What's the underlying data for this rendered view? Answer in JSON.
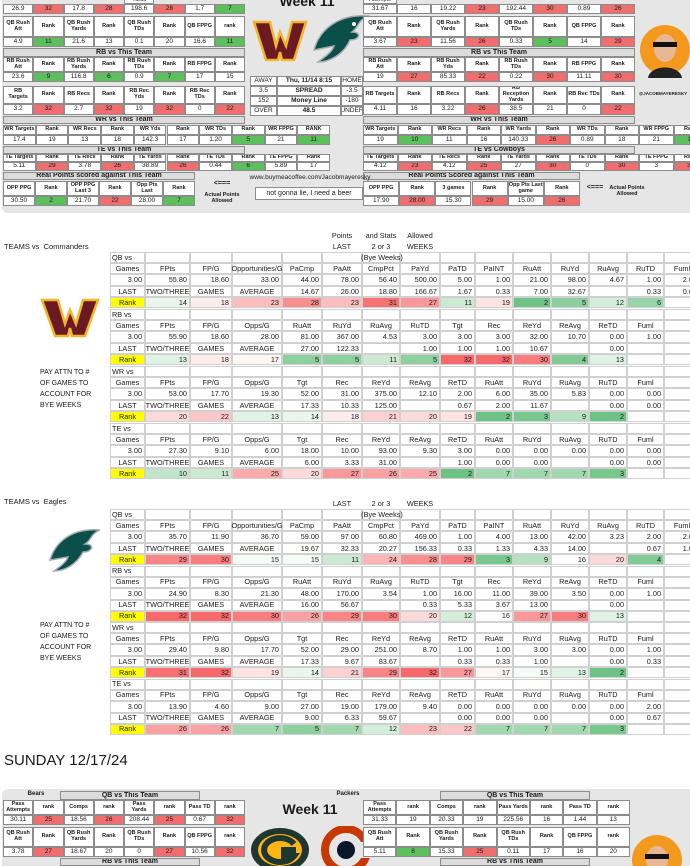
{
  "graphic_1": {
    "title": "Week 11",
    "left": [
      {
        "label": "Yards",
        "values": [
          "26.9",
          "32",
          "17.8",
          "28",
          "198.6",
          "28",
          "1.7",
          "7"
        ]
      },
      {
        "header": [
          "QB Rush Att",
          "Rank",
          "QB Rush Yards",
          "Rank",
          "QB Rush TDs",
          "Rank",
          "QB FPPG",
          "rank"
        ],
        "values": [
          "4.9",
          "11",
          "21.6",
          "13",
          "0.1",
          "20",
          "16.6",
          "11"
        ]
      },
      {
        "title": "RB vs This Team",
        "header": [
          "RB Rush Att",
          "Rank",
          "RB Rush Yards",
          "Rank",
          "RB Rush TDs",
          "Rank",
          "RB FPPG",
          "Rank"
        ],
        "values": [
          "23.6",
          "9",
          "116.8",
          "6",
          "0.9",
          "7",
          "17",
          "15"
        ]
      },
      {
        "header": [
          "RB Targets",
          "Rank",
          "RB Recs",
          "Rank",
          "RB Rec Yds",
          "Rank",
          "RB Rec TDs",
          "Rank"
        ],
        "values": [
          "3.2",
          "32",
          "2.7",
          "32",
          "19",
          "32",
          "0",
          "22"
        ]
      },
      {
        "title": "WR vs This Team",
        "header": [
          "WR Targets",
          "Rank",
          "WR Recs",
          "Rank",
          "WR Yds",
          "Rank",
          "WR TDs",
          "Rank",
          "WR FPPG",
          "RANK"
        ],
        "values": [
          "17.4",
          "19",
          "13",
          "18",
          "142.3",
          "17",
          "1.20",
          "5",
          "21",
          "11"
        ]
      },
      {
        "title": "TE vs This Team",
        "header": [
          "TE Targets",
          "Rank",
          "TE Recs",
          "Rank",
          "TE Yards",
          "Rank",
          "TE TDs",
          "Rank",
          "TE FPPG",
          "Rank"
        ],
        "values": [
          "5.11",
          "29",
          "3.78",
          "26",
          "38.89",
          "26",
          "0.44",
          "6",
          "5.89",
          "17"
        ]
      },
      {
        "title": "Real Points scored against This Team",
        "header": [
          "OPP PPG",
          "Rank",
          "OPP PPG Last 3",
          "Rank",
          "Opp Pts Last",
          "Rank"
        ],
        "values": [
          "30.50",
          "2",
          "21.70",
          "22",
          "28.00",
          "7"
        ]
      }
    ],
    "right": [
      {
        "label": "Attempts",
        "values": [
          "31.67",
          "16",
          "19.22",
          "23",
          "192.44",
          "30",
          "0.89",
          "26"
        ]
      },
      {
        "header": [
          "QB Rush Att",
          "Rank",
          "QB Rush Yards",
          "Rank",
          "QB Rush TDs",
          "Rank",
          "QB FPPG",
          "Rank"
        ],
        "values": [
          "3.67",
          "23",
          "11.56",
          "26",
          "0.33",
          "5",
          "14",
          "29"
        ]
      },
      {
        "title": "RB vs This Team",
        "header": [
          "RB Rush Att",
          "Rank",
          "RB Rush Yds",
          "Rank",
          "RB Rush TDs",
          "Rank",
          "RB FPPG",
          "Rank"
        ],
        "values": [
          "19",
          "27",
          "85.33",
          "22",
          "0.22",
          "30",
          "11.11",
          "30"
        ]
      },
      {
        "header": [
          "RB Targets",
          "Rank",
          "RB Recs",
          "Rank",
          "RB Reception Yards",
          "Rank",
          "RB Rec TDs",
          "Rank"
        ],
        "values": [
          "4.11",
          "16",
          "3.22",
          "26",
          "38.5",
          "21",
          "0",
          "22"
        ]
      },
      {
        "title": "WR vs This Team",
        "header": [
          "WR Targets",
          "Rank",
          "WR Recs",
          "Rank",
          "WR Yards",
          "Rank",
          "WR TDs",
          "Rank",
          "WR FPPG",
          "Rank"
        ],
        "values": [
          "19",
          "10",
          "11",
          "16",
          "140.33",
          "26",
          "0.89",
          "18",
          "21",
          "11"
        ]
      },
      {
        "title": "TE vs Cowboys",
        "header": [
          "TE Targets",
          "Rank",
          "TE Recs",
          "Rank",
          "TE Yards",
          "Rank",
          "TE TDs",
          "Rank",
          "TE FPPG",
          "Rank"
        ],
        "values": [
          "4.12",
          "23",
          "4.12",
          "25",
          "27",
          "30",
          "0",
          "30",
          "3",
          "31"
        ]
      },
      {
        "title": "Real Points Scored against This Team",
        "header": [
          "OPP PPG",
          "Rank",
          "3 games",
          "Rank",
          "Opp Pts Last game",
          "Rank"
        ],
        "values": [
          "17.90",
          "28.00",
          "15.30",
          "29",
          "15.00",
          "26"
        ]
      }
    ],
    "game": [
      [
        "AWAY",
        "Thu, 11/14 8:15",
        "HOME"
      ],
      [
        "3.5",
        "SPREAD",
        "-3.5"
      ],
      [
        "152",
        "Money Line",
        "-180"
      ],
      [
        "OVER",
        "48.5",
        "UNDER"
      ]
    ],
    "link": "www.buymeacoffee.com/Jacobmayeresky",
    "tagline": "not gonna lie, I need a beer",
    "left_arrow": "<===",
    "left_arrow_note": "Actual Points Allowed",
    "right_arrow": "<===",
    "right_arrow_note": "Actual Points Allowed",
    "handle": "@JACOBMAYERESKY"
  },
  "commanders_table": {
    "title": "TEAMS vs  Commanders",
    "header_notes": [
      [
        "Points",
        "and Stats",
        "Allowed"
      ],
      [
        "LAST",
        "2 or 3",
        "WEEKS"
      ]
    ],
    "bye_note": "(Bye Weeks)",
    "note": [
      "PAY ATTN TO #",
      "OF GAMES TO",
      "ACCOUNT FOR",
      "BYE WEEKS"
    ],
    "sections": [
      {
        "label": "QB vs",
        "rows": [
          [
            "Games",
            "FPts",
            "FP/G",
            "Opportunities/G",
            "PaCmp",
            "PaAtt",
            "CmpPct",
            "PaYd",
            "PaTD",
            "PaINT",
            "RuAtt",
            "RuYd",
            "RuAvg",
            "RuTD",
            "Fuml"
          ],
          [
            "3.00",
            "55.80",
            "18.60",
            "33.00",
            "44.00",
            "78.00",
            "56.40",
            "500.00",
            "5.00",
            "1.00",
            "21.00",
            "98.00",
            "4.67",
            "1.00",
            "2.00"
          ],
          [
            "LAST",
            "TWO/THREE",
            "GAMES",
            "AVERAGE",
            "14.67",
            "26.00",
            "18.80",
            "166.67",
            "1.67",
            "0.33",
            "7.00",
            "32.67",
            null,
            "0.33",
            "0.67"
          ],
          [
            "Rank",
            "14",
            "18",
            "23",
            "28",
            "23",
            "31",
            "27",
            "11",
            "19",
            "2",
            "5",
            "12",
            "6",
            null
          ]
        ]
      },
      {
        "label": "RB vs",
        "rows": [
          [
            "Games",
            "FPts",
            "FP/G",
            "Opps/G",
            "RuAtt",
            "RuYd",
            "RuAvg",
            "RuTD",
            "Tgt",
            "Rec",
            "ReYd",
            "ReAvg",
            "ReTD",
            "Fuml",
            null
          ],
          [
            "3.00",
            "55.90",
            "18.60",
            "28.00",
            "81.00",
            "367.00",
            "4.53",
            "3.00",
            "3.00",
            "3.00",
            "32.00",
            "10.70",
            "0.00",
            "1.00",
            null
          ],
          [
            "LAST",
            "TWO/THREE",
            "GAMES",
            "AVERAGE",
            "27.00",
            "122.33",
            null,
            "1.00",
            "1.00",
            "1.00",
            "10.67",
            null,
            "0.00",
            null,
            null
          ],
          [
            "Rank",
            "13",
            "18",
            "17",
            "5",
            "5",
            "11",
            "5",
            "32",
            "32",
            "30",
            "4",
            "13",
            null,
            null
          ]
        ]
      },
      {
        "label": "WR vs",
        "rows": [
          [
            "Games",
            "FPts",
            "FP/G",
            "Opps/G",
            "Tgt",
            "Rec",
            "ReYd",
            "ReAvg",
            "ReTD",
            "RuAtt",
            "RuYd",
            "RuAvg",
            "RuTD",
            "Fuml",
            null
          ],
          [
            "3.00",
            "53.00",
            "17.70",
            "19.30",
            "52.00",
            "31.00",
            "375.00",
            "12.10",
            "2.00",
            "6.00",
            "35.00",
            "5.83",
            "0.00",
            "0.00",
            null
          ],
          [
            "LAST",
            "TWO/THREE",
            "GAMES",
            "AVERAGE",
            "17.33",
            "10.33",
            "125.00",
            null,
            "0.67",
            "2.00",
            "11.67",
            null,
            "0.00",
            "0.00",
            null
          ],
          [
            "Rank",
            "20",
            "22",
            "13",
            "14",
            "18",
            "21",
            "20",
            "19",
            "2",
            "3",
            "9",
            "2",
            null,
            null
          ]
        ]
      },
      {
        "label": "TE vs",
        "rows": [
          [
            "Games",
            "FPts",
            "FP/G",
            "Opps/G",
            "Tgt",
            "Rec",
            "ReYd",
            "ReAvg",
            "ReTD",
            "RuAtt",
            "RuYd",
            "RuAvg",
            "RuTD",
            "Fuml",
            null
          ],
          [
            "3.00",
            "27.30",
            "9.10",
            "6.00",
            "18.00",
            "10.00",
            "93.00",
            "9.30",
            "3.00",
            "0.00",
            "0.00",
            "0.00",
            "0.00",
            "0.00",
            null
          ],
          [
            "LAST",
            "TWO/THREE",
            "GAMES",
            "AVERAGE",
            "6.00",
            "3.33",
            "31.00",
            null,
            "1.00",
            "0.00",
            "0.00",
            null,
            "0.00",
            "0.00",
            null
          ],
          [
            "Rank",
            "10",
            "11",
            "25",
            "20",
            "27",
            "26",
            "25",
            "2",
            "7",
            "7",
            "7",
            "3",
            null,
            null
          ]
        ]
      }
    ]
  },
  "eagles_table": {
    "title": "TEAMS vs  Eagles",
    "header_notes": [
      [
        "LAST",
        "2 or 3",
        "WEEKS"
      ]
    ],
    "bye_note": "(Bye Weeks)",
    "note": [
      "PAY ATTN TO #",
      "OF GAMES TO",
      "ACCOUNT FOR",
      "BYE WEEKS"
    ],
    "sections": [
      {
        "label": "QB vs",
        "rows": [
          [
            "Games",
            "FPts",
            "FP/G",
            "Opportunities/G",
            "PaCmp",
            "PaAtt",
            "CmpPct",
            "PaYd",
            "PaTD",
            "PaINT",
            "RuAtt",
            "RuYd",
            "RuAvg",
            "RuTD",
            "Fuml"
          ],
          [
            "3.00",
            "35.70",
            "11.90",
            "36.70",
            "59.00",
            "97.00",
            "60.80",
            "469.00",
            "1.00",
            "4.00",
            "13.00",
            "42.00",
            "3.23",
            "2.00",
            "2.00"
          ],
          [
            "LAST",
            "TWO/THREE",
            "GAMES",
            "AVERAGE",
            "19.67",
            "32.33",
            "20.27",
            "156.33",
            "0.33",
            "1.33",
            "4.33",
            "14.00",
            null,
            "0.67",
            "1.00"
          ],
          [
            "Rank",
            "29",
            "30",
            "15",
            "15",
            "11",
            "24",
            "28",
            "29",
            "3",
            "9",
            "16",
            "20",
            "4",
            null
          ]
        ]
      },
      {
        "label": "RB vs",
        "rows": [
          [
            "Games",
            "FPts",
            "FP/G",
            "Opps/G",
            "RuAtt",
            "RuYd",
            "RuAvg",
            "RuTD",
            "Tgt",
            "Rec",
            "ReYd",
            "ReAvg",
            "ReTD",
            "Fuml",
            null
          ],
          [
            "3.00",
            "24.90",
            "8.30",
            "21.30",
            "48.00",
            "170.00",
            "3.54",
            "1.00",
            "16.00",
            "11.00",
            "39.00",
            "3.50",
            "0.00",
            "1.00",
            null
          ],
          [
            "LAST",
            "TWO/THREE",
            "GAMES",
            "AVERAGE",
            "16.00",
            "56.67",
            null,
            "0.33",
            "5.33",
            "3.67",
            "13.00",
            null,
            "0.00",
            null,
            null
          ],
          [
            "Rank",
            "32",
            "32",
            "30",
            "26",
            "29",
            "30",
            "20",
            "12",
            "16",
            "27",
            "30",
            "13",
            null,
            null
          ]
        ]
      },
      {
        "label": "WR vs",
        "rows": [
          [
            "Games",
            "FPts",
            "FP/G",
            "Opps/G",
            "Tgt",
            "Rec",
            "ReYd",
            "ReAvg",
            "ReTD",
            "RuAtt",
            "RuYd",
            "RuAvg",
            "RuTD",
            "Fuml",
            null
          ],
          [
            "3.00",
            "29.40",
            "9.80",
            "17.70",
            "52.00",
            "29.00",
            "251.00",
            "8.70",
            "1.00",
            "1.00",
            "3.00",
            "3.00",
            "0.00",
            "1.00",
            null
          ],
          [
            "LAST",
            "TWO/THREE",
            "GAMES",
            "AVERAGE",
            "17.33",
            "9.67",
            "83.67",
            null,
            "0.33",
            "0.33",
            "1.00",
            null,
            "0.00",
            "0.33",
            null
          ],
          [
            "Rank",
            "31",
            "32",
            "19",
            "14",
            "21",
            "29",
            "32",
            "27",
            "17",
            "15",
            "13",
            "2",
            null,
            null
          ]
        ]
      },
      {
        "label": "TE vs",
        "rows": [
          [
            "Games",
            "FPts",
            "FP/G",
            "Opps/G",
            "Tgt",
            "Rec",
            "ReYd",
            "ReAvg",
            "ReTD",
            "RuAtt",
            "RuYd",
            "RuAvg",
            "RuTD",
            "Fuml",
            null
          ],
          [
            "3.00",
            "13.90",
            "4.60",
            "9.00",
            "27.00",
            "19.00",
            "179.00",
            "9.40",
            "0.00",
            "0.00",
            "0.00",
            "0.00",
            "0.00",
            "2.00",
            null
          ],
          [
            "LAST",
            "TWO/THREE",
            "GAMES",
            "AVERAGE",
            "9.00",
            "6.33",
            "59.67",
            null,
            "0.00",
            "0.00",
            "0.00",
            null,
            "0.00",
            "0.67",
            null
          ],
          [
            "Rank",
            "26",
            "26",
            "7",
            "5",
            "7",
            "12",
            "23",
            "22",
            "7",
            "7",
            "7",
            "3",
            null,
            null
          ]
        ]
      }
    ]
  },
  "day_heading": "SUNDAY 12/17/24",
  "graphic_2": {
    "title": "Week 11",
    "away_label": "Bears",
    "home_label": "Packers",
    "left": [
      {
        "title": "QB vs This Team",
        "header": [
          "Pass Attempts",
          "rank",
          "Comps",
          "rank",
          "Pass Yards",
          "rank",
          "Pass TD",
          "rank"
        ],
        "values": [
          "30.11",
          "25",
          "18.56",
          "26",
          "208.44",
          "25",
          "0.67",
          "32"
        ]
      },
      {
        "header": [
          "QB Rush Att",
          "Rank",
          "QB Rush Yards",
          "Rank",
          "QB Rush TDs",
          "Rank",
          "QB FPPG",
          "rank"
        ],
        "values": [
          "3.78",
          "27",
          "18.67",
          "20",
          "0",
          "27",
          "10.56",
          "32"
        ]
      },
      {
        "title": "RB vs This Team"
      }
    ],
    "right": [
      {
        "title": "QB vs This Team",
        "header": [
          "Pass Attempts",
          "rank",
          "Comps",
          "rank",
          "Pass Yards",
          "rank",
          "Pass TD",
          "rank"
        ],
        "values": [
          "31.33",
          "19",
          "20.33",
          "19",
          "225.56",
          "16",
          "1.44",
          "13"
        ]
      },
      {
        "header": [
          "QB Rush Att",
          "Rank",
          "QB Rush Yards",
          "Rank",
          "QB Rush TDs",
          "Rank",
          "QB FPPG",
          "rank"
        ],
        "values": [
          "5.11",
          "8",
          "15.33",
          "25",
          "0.11",
          "17",
          "16",
          "20"
        ]
      },
      {
        "title": "RB vs This Team"
      }
    ]
  }
}
